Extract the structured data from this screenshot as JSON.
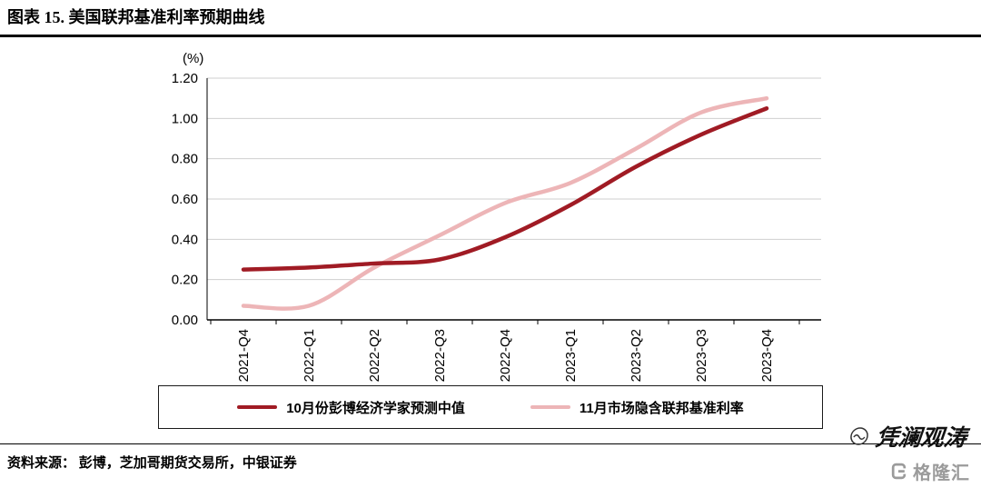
{
  "page": {
    "title": "图表 15. 美国联邦基准利率预期曲线",
    "source": "资料来源： 彭博，芝加哥期货交易所，中银证券",
    "watermark_signature": "凭澜观涛",
    "watermark_logo": "格隆汇"
  },
  "chart_data": {
    "type": "line",
    "title": "美国联邦基准利率预期曲线",
    "xlabel": "",
    "ylabel": "(%)",
    "ylim": [
      0.0,
      1.2
    ],
    "ytick_step": 0.2,
    "grid": true,
    "legend_position": "bottom",
    "categories": [
      "2021-Q4",
      "2022-Q1",
      "2022-Q2",
      "2022-Q3",
      "2022-Q4",
      "2023-Q1",
      "2023-Q2",
      "2023-Q3",
      "2023-Q4"
    ],
    "series": [
      {
        "name": "10月份彭博经济学家预测中值",
        "color": "#A01B24",
        "values": [
          0.25,
          0.26,
          0.28,
          0.3,
          0.41,
          0.57,
          0.76,
          0.92,
          1.05
        ]
      },
      {
        "name": "11月市场隐含联邦基准利率",
        "color": "#EDB5B7",
        "values": [
          0.07,
          0.07,
          0.26,
          0.42,
          0.58,
          0.68,
          0.85,
          1.03,
          1.1
        ]
      }
    ]
  }
}
